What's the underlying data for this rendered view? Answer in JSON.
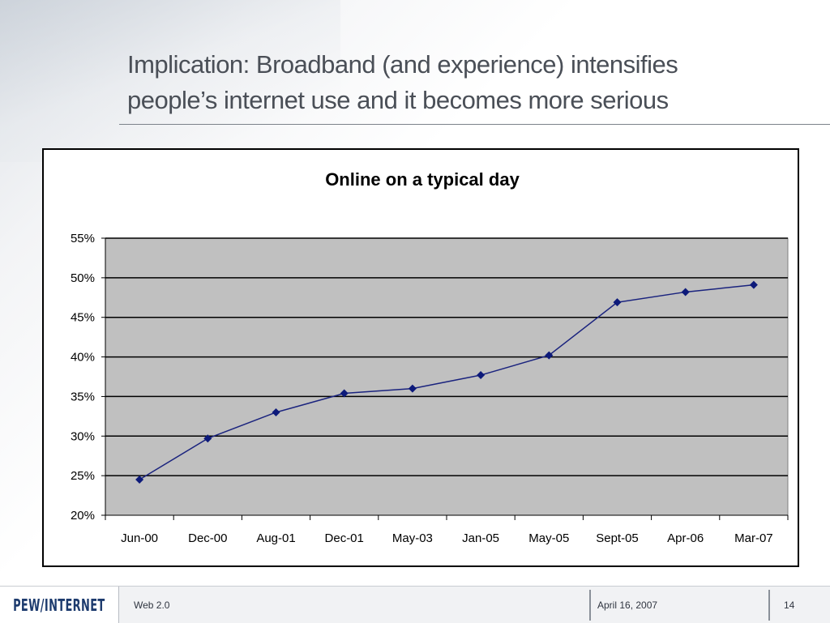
{
  "slide": {
    "title_line1": "Implication: Broadband (and experience) intensifies",
    "title_line2": "people’s internet use and it becomes more serious"
  },
  "chart_data": {
    "type": "line",
    "title": "Online on a typical day",
    "categories": [
      "Jun-00",
      "Dec-00",
      "Aug-01",
      "Dec-01",
      "May-03",
      "Jan-05",
      "May-05",
      "Sept-05",
      "Apr-06",
      "Mar-07"
    ],
    "series": [
      {
        "values": [
          24.5,
          29.7,
          33,
          35.4,
          36,
          37.7,
          40.2,
          46.9,
          48.2,
          49.1
        ]
      }
    ],
    "ylim": [
      20,
      55
    ],
    "yticks": [
      "20%",
      "25%",
      "30%",
      "35%",
      "40%",
      "45%",
      "50%",
      "55%"
    ],
    "ytick_values": [
      20,
      25,
      30,
      35,
      40,
      45,
      50,
      55
    ],
    "grid": true,
    "legend": "none",
    "xlabel": "",
    "ylabel": "",
    "colors": {
      "line": "#1a237e",
      "marker": "#0d1a7a",
      "plot_bg": "#c0c0c0",
      "grid": "#000000"
    }
  },
  "footer": {
    "logo": "PEW/INTERNET",
    "topic": "Web 2.0",
    "date": "April 16, 2007",
    "page": "14"
  }
}
